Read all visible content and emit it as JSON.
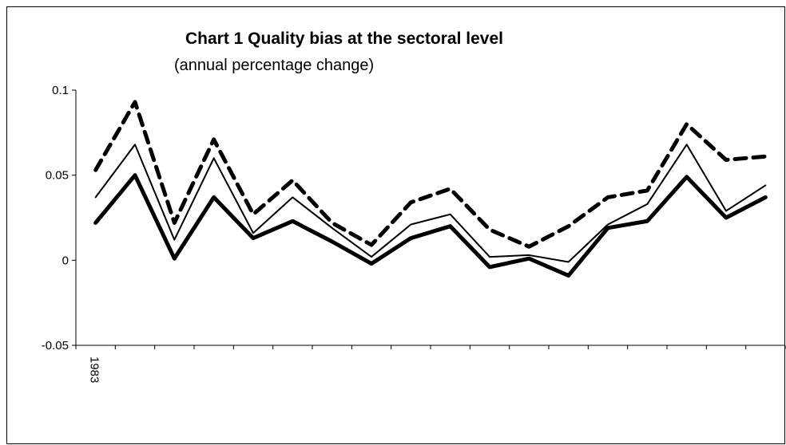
{
  "chart_data": {
    "type": "line",
    "title": "Chart 1 Quality bias at the sectoral level",
    "subtitle": "(annual percentage change)",
    "categories": [
      "1983",
      null,
      null,
      null,
      null,
      null,
      null,
      null,
      null,
      null,
      null,
      null,
      null,
      null,
      null,
      null,
      null,
      null
    ],
    "series": [
      {
        "color": "#000000",
        "style": "dashed",
        "weight": "bold",
        "values": [
          0.053,
          0.093,
          0.022,
          0.071,
          0.027,
          0.047,
          0.022,
          0.009,
          0.034,
          0.042,
          0.018,
          0.008,
          0.02,
          0.037,
          0.041,
          0.08,
          0.059,
          0.061
        ]
      },
      {
        "color": "#000000",
        "style": "solid",
        "weight": "normal",
        "values": [
          0.037,
          0.068,
          0.012,
          0.06,
          0.016,
          0.037,
          0.019,
          0.002,
          0.021,
          0.027,
          0.002,
          0.003,
          -0.001,
          0.021,
          0.033,
          0.068,
          0.029,
          0.044
        ]
      },
      {
        "color": "#000000",
        "style": "solid",
        "weight": "bold",
        "values": [
          0.022,
          0.05,
          0.001,
          0.037,
          0.013,
          0.023,
          0.011,
          -0.002,
          0.013,
          0.02,
          -0.004,
          0.001,
          -0.009,
          0.019,
          0.023,
          0.049,
          0.025,
          0.037
        ]
      }
    ],
    "ylim": [
      -0.05,
      0.1
    ],
    "yticks": [
      -0.05,
      0,
      0.05,
      0.1
    ],
    "grid": false
  }
}
